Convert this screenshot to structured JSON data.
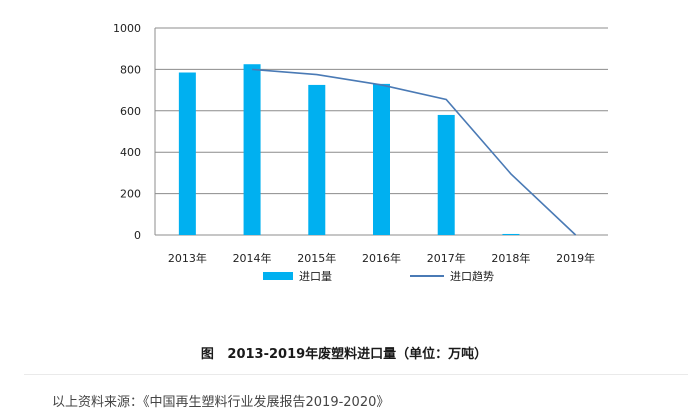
{
  "chart_data": {
    "type": "bar",
    "categories": [
      "2013年",
      "2014年",
      "2015年",
      "2016年",
      "2017年",
      "2018年",
      "2019年"
    ],
    "series": [
      {
        "name": "进口量",
        "type": "bar",
        "color": "#00b0f0",
        "values": [
          785,
          825,
          725,
          730,
          580,
          5,
          0
        ]
      },
      {
        "name": "进口趋势",
        "type": "line",
        "color": "#4a7ab5",
        "values": [
          null,
          800,
          775,
          725,
          655,
          295,
          0
        ]
      }
    ],
    "ylim": [
      0,
      1000
    ],
    "yticks": [
      0,
      200,
      400,
      600,
      800,
      1000
    ],
    "grid": true,
    "legend": "bottom"
  },
  "caption": "图   2013-2019年废塑料进口量（单位：万吨）",
  "source": "以上资料来源：《中国再生塑料行业发展报告2019-2020》"
}
